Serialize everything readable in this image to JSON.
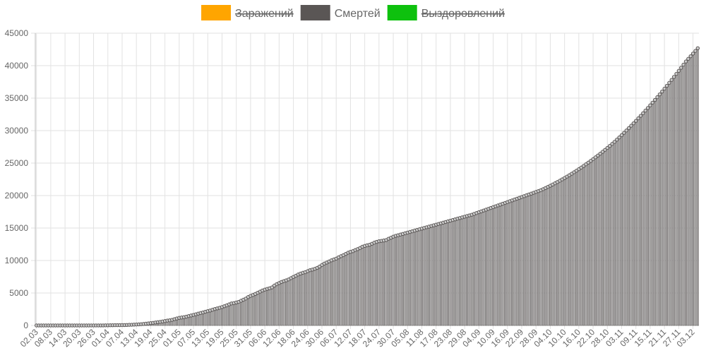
{
  "chart_data": {
    "type": "bar",
    "grid": true,
    "legend": [
      {
        "name": "Заражений",
        "color": "#ffa500",
        "hidden": true
      },
      {
        "name": "Смертей",
        "color": "#5a5655",
        "hidden": false
      },
      {
        "name": "Выздоровлений",
        "color": "#0ec10e",
        "hidden": true
      }
    ],
    "ylim": [
      0,
      45000
    ],
    "yticks": [
      0,
      5000,
      10000,
      15000,
      20000,
      25000,
      30000,
      35000,
      40000,
      45000
    ],
    "categories": [
      "02.03",
      null,
      null,
      null,
      null,
      null,
      "08.03",
      null,
      null,
      null,
      null,
      null,
      "14.03",
      null,
      null,
      null,
      null,
      null,
      "20.03",
      null,
      null,
      null,
      null,
      null,
      "26.03",
      null,
      null,
      null,
      null,
      null,
      "01.04",
      null,
      null,
      null,
      null,
      null,
      "07.04",
      null,
      null,
      null,
      null,
      null,
      "13.04",
      null,
      null,
      null,
      null,
      null,
      "19.04",
      null,
      null,
      null,
      null,
      null,
      "25.04",
      null,
      null,
      null,
      null,
      null,
      "01.05",
      null,
      null,
      null,
      null,
      null,
      "07.05",
      null,
      null,
      null,
      null,
      null,
      "13.05",
      null,
      null,
      null,
      null,
      null,
      "19.05",
      null,
      null,
      null,
      null,
      null,
      "25.05",
      null,
      null,
      null,
      null,
      null,
      "31.05",
      null,
      null,
      null,
      null,
      null,
      "06.06",
      null,
      null,
      null,
      null,
      null,
      "12.06",
      null,
      null,
      null,
      null,
      null,
      "18.06",
      null,
      null,
      null,
      null,
      null,
      "24.06",
      null,
      null,
      null,
      null,
      null,
      "30.06",
      null,
      null,
      null,
      null,
      null,
      "06.07",
      null,
      null,
      null,
      null,
      null,
      "12.07",
      null,
      null,
      null,
      null,
      null,
      "18.07",
      null,
      null,
      null,
      null,
      null,
      "24.07",
      null,
      null,
      null,
      null,
      null,
      "30.07",
      null,
      null,
      null,
      null,
      null,
      "05.08",
      null,
      null,
      null,
      null,
      null,
      "11.08",
      null,
      null,
      null,
      null,
      null,
      "17.08",
      null,
      null,
      null,
      null,
      null,
      "23.08",
      null,
      null,
      null,
      null,
      null,
      "29.08",
      null,
      null,
      null,
      null,
      null,
      "04.09",
      null,
      null,
      null,
      null,
      null,
      "10.09",
      null,
      null,
      null,
      null,
      null,
      "16.09",
      null,
      null,
      null,
      null,
      null,
      "22.09",
      null,
      null,
      null,
      null,
      null,
      "28.09",
      null,
      null,
      null,
      null,
      null,
      "04.10",
      null,
      null,
      null,
      null,
      null,
      "10.10",
      null,
      null,
      null,
      null,
      null,
      "16.10",
      null,
      null,
      null,
      null,
      null,
      "22.10",
      null,
      null,
      null,
      null,
      null,
      "28.10",
      null,
      null,
      null,
      null,
      null,
      "03.11",
      null,
      null,
      null,
      null,
      null,
      "09.11",
      null,
      null,
      null,
      null,
      null,
      "15.11",
      null,
      null,
      null,
      null,
      null,
      "21.11",
      null,
      null,
      null,
      null,
      null,
      "27.11",
      null,
      null,
      null,
      null,
      null,
      "03.12",
      null,
      null
    ],
    "series": [
      {
        "name": "Смертей",
        "color": "#5a5655",
        "values": [
          0,
          0,
          0,
          0,
          0,
          0,
          0,
          0,
          0,
          0,
          0,
          0,
          0,
          0,
          0,
          0,
          0,
          1,
          1,
          1,
          1,
          1,
          1,
          3,
          3,
          4,
          4,
          8,
          9,
          17,
          24,
          30,
          34,
          43,
          45,
          47,
          58,
          63,
          76,
          94,
          106,
          130,
          148,
          170,
          198,
          232,
          273,
          313,
          361,
          405,
          456,
          513,
          555,
          615,
          681,
          747,
          794,
          867,
          972,
          1073,
          1169,
          1222,
          1280,
          1356,
          1451,
          1537,
          1625,
          1723,
          1827,
          1915,
          2009,
          2116,
          2212,
          2305,
          2418,
          2537,
          2631,
          2722,
          2837,
          2972,
          3099,
          3249,
          3388,
          3437,
          3541,
          3633,
          3807,
          3968,
          4142,
          4374,
          4555,
          4693,
          4855,
          5037,
          5215,
          5384,
          5520,
          5632,
          5725,
          5859,
          6142,
          6358,
          6532,
          6705,
          6829,
          6948,
          7091,
          7284,
          7478,
          7650,
          7843,
          7992,
          8111,
          8206,
          8359,
          8513,
          8605,
          8715,
          8867,
          9073,
          9306,
          9536,
          9683,
          9859,
          10027,
          10163,
          10296,
          10494,
          10667,
          10826,
          11017,
          11205,
          11335,
          11439,
          11614,
          11753,
          11917,
          12123,
          12247,
          12342,
          12427,
          12580,
          12745,
          12873,
          12970,
          13026,
          13083,
          13149,
          13354,
          13504,
          13673,
          13799,
          13892,
          13994,
          14096,
          14198,
          14300,
          14402,
          14504,
          14606,
          14708,
          14810,
          14912,
          15014,
          15116,
          15218,
          15320,
          15422,
          15524,
          15626,
          15728,
          15830,
          15932,
          16034,
          16136,
          16238,
          16340,
          16442,
          16544,
          16646,
          16748,
          16850,
          16952,
          17050,
          17180,
          17310,
          17440,
          17570,
          17700,
          17830,
          17960,
          18090,
          18220,
          18350,
          18480,
          18610,
          18740,
          18870,
          19000,
          19130,
          19260,
          19390,
          19520,
          19650,
          19780,
          19910,
          20040,
          20170,
          20300,
          20430,
          20560,
          20690,
          20820,
          20990,
          21160,
          21335,
          21515,
          21700,
          21890,
          22085,
          22285,
          22490,
          22700,
          22915,
          23135,
          23360,
          23590,
          23825,
          24065,
          24310,
          24560,
          24815,
          25075,
          25340,
          25610,
          25885,
          26165,
          26450,
          26740,
          27035,
          27335,
          27640,
          27950,
          28265,
          28605,
          28950,
          29300,
          29655,
          30015,
          30380,
          30750,
          31125,
          31505,
          31890,
          32280,
          32675,
          33075,
          33480,
          33890,
          34305,
          34725,
          35150,
          35580,
          36015,
          36455,
          36900,
          37350,
          37805,
          38265,
          38730,
          39200,
          39675,
          40155,
          40640,
          41045,
          41450,
          41860,
          42270,
          42684
        ]
      }
    ]
  }
}
